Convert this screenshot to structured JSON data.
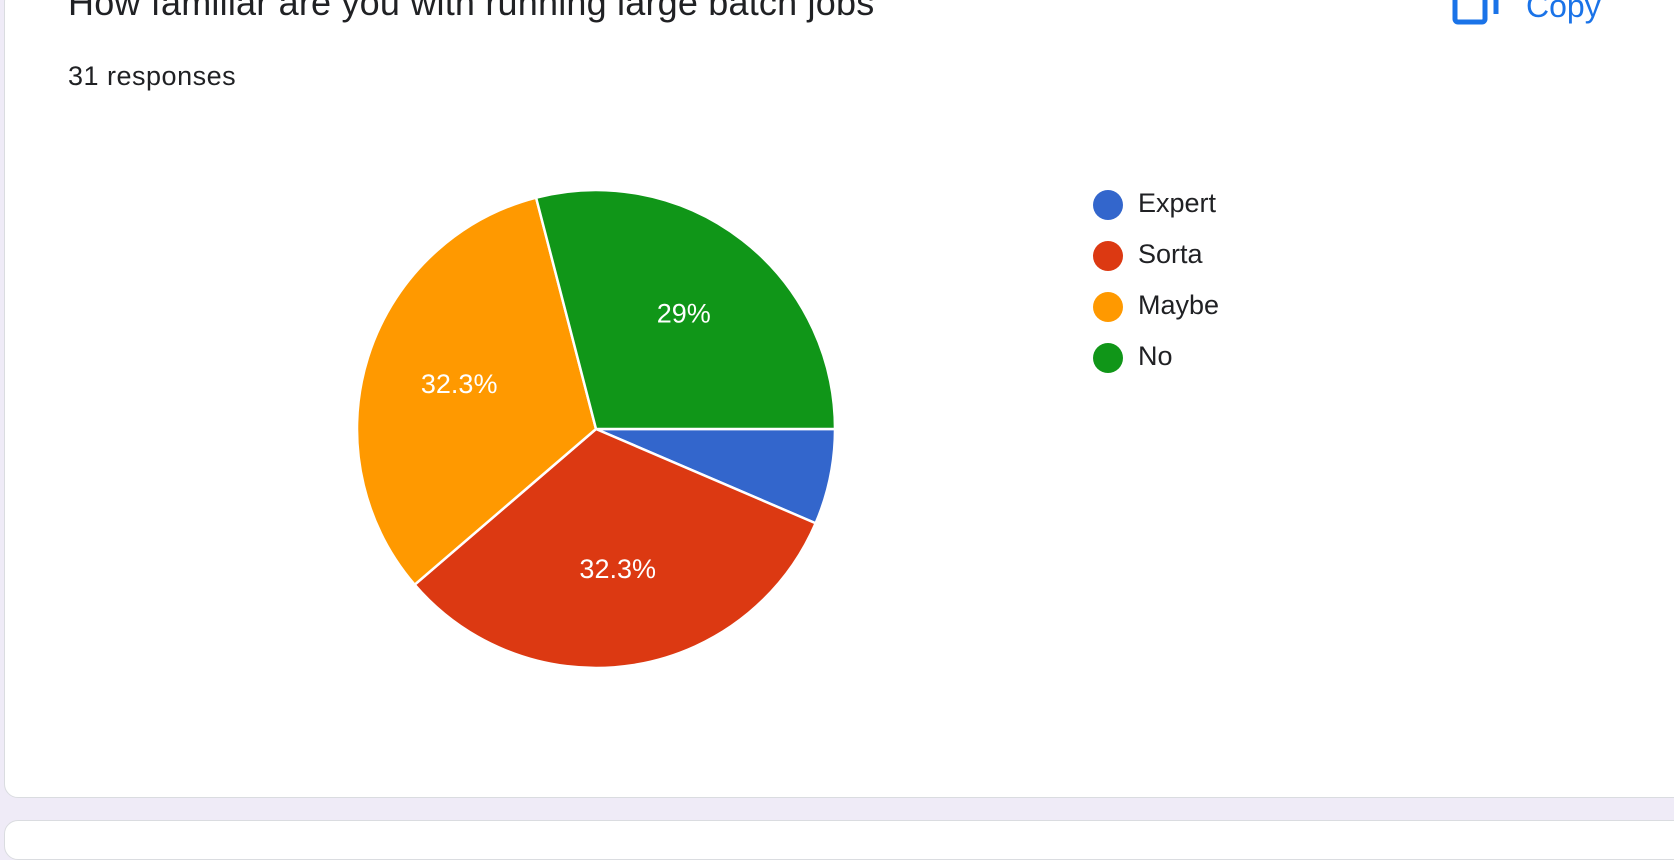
{
  "question": {
    "title": "How familiar are you with running large batch jobs",
    "responses": "31 responses",
    "copy_label": "Copy"
  },
  "colors": {
    "accent": "#1a73e8",
    "expert": "#3366cc",
    "sorta": "#dc3912",
    "maybe": "#ff9900",
    "no": "#109618"
  },
  "icons": {
    "copy": "copy-icon"
  },
  "chart_data": {
    "type": "pie",
    "title": "How familiar are you with running large batch jobs",
    "total_responses": 31,
    "legend_position": "right",
    "slices": [
      {
        "label": "Expert",
        "value": 2,
        "percent": 6.5,
        "percent_label": "",
        "color": "#3366cc"
      },
      {
        "label": "Sorta",
        "value": 10,
        "percent": 32.3,
        "percent_label": "32.3%",
        "color": "#dc3912"
      },
      {
        "label": "Maybe",
        "value": 10,
        "percent": 32.3,
        "percent_label": "32.3%",
        "color": "#ff9900"
      },
      {
        "label": "No",
        "value": 9,
        "percent": 29.0,
        "percent_label": "29%",
        "color": "#109618"
      }
    ]
  }
}
